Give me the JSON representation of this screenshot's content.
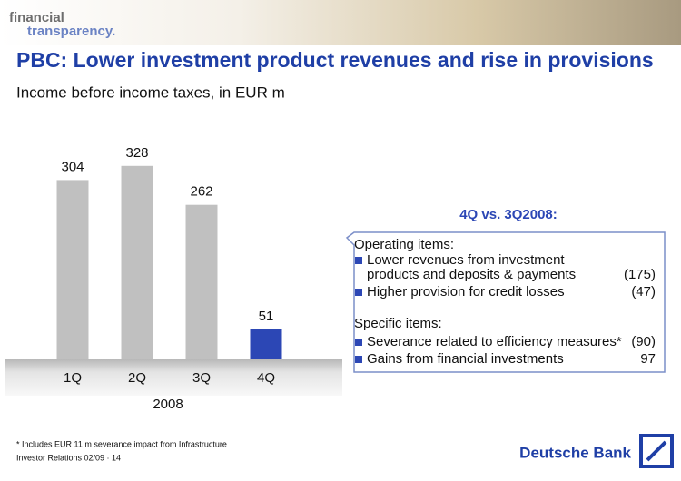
{
  "header": {
    "logo_line1": "financial",
    "logo_line2": "transparency."
  },
  "chart_data": {
    "type": "bar",
    "title": "PBC: Lower investment product revenues and rise in provisions",
    "subtitle": "Income before income taxes, in EUR m",
    "categories": [
      "1Q",
      "2Q",
      "3Q",
      "4Q"
    ],
    "values": [
      304,
      328,
      262,
      51
    ],
    "colors": [
      "#c0c0c0",
      "#c0c0c0",
      "#c0c0c0",
      "#2c47b5"
    ],
    "x_label": "2008"
  },
  "panel": {
    "heading": "4Q vs. 3Q2008:",
    "sections": [
      {
        "title": "Operating items:",
        "items": [
          {
            "lines": [
              "Lower revenues from investment",
              "products and deposits & payments"
            ],
            "value": "(175)"
          },
          {
            "lines": [
              "Higher provision for credit losses"
            ],
            "value": "(47)"
          }
        ]
      },
      {
        "title": "Specific items:",
        "items": [
          {
            "lines": [
              "Severance related to efficiency measures*"
            ],
            "value": "(90)"
          },
          {
            "lines": [
              "Gains from financial investments"
            ],
            "value": "97"
          }
        ]
      }
    ]
  },
  "footer": {
    "note": "* Includes EUR 11 m severance impact from Infrastructure",
    "source": "Investor Relations 02/09 · 14",
    "brand": "Deutsche Bank"
  }
}
